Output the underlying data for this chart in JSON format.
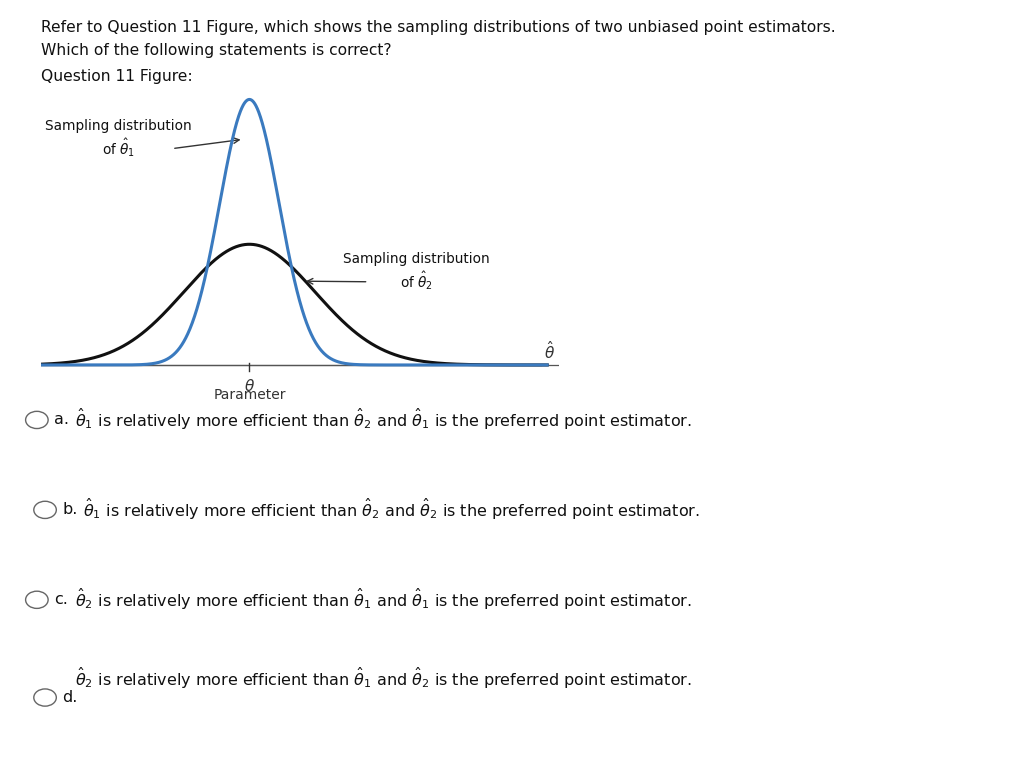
{
  "title_line1": "Refer to Question 11 Figure, which shows the sampling distributions of two unbiased point estimators.",
  "title_line2": "Which of the following statements is correct?",
  "subtitle_text": "Question 11 Figure:",
  "fig_bg_color": "#ffffff",
  "plot_bg_color": "#f0ebcc",
  "plot_border_color": "#c8c090",
  "curve1_color": "#3a7abf",
  "curve2_color": "#111111",
  "curve1_sigma": 0.5,
  "curve2_sigma": 1.1,
  "mean": 0.0,
  "label1_text": "Sampling distribution\nof $\\hat{\\theta}_1$",
  "label2_text": "Sampling distribution\nof $\\hat{\\theta}_2$",
  "options": [
    {
      "letter": "a.",
      "text": "$\\hat{\\theta}_1$ is relatively more efficient than $\\hat{\\theta}_2$ and $\\hat{\\theta}_1$ is the preferred point estimator."
    },
    {
      "letter": "b.",
      "text": "$\\hat{\\theta}_1$ is relatively more efficient than $\\hat{\\theta}_2$ and $\\hat{\\theta}_2$ is the preferred point estimator."
    },
    {
      "letter": "c.",
      "text": "$\\hat{\\theta}_2$ is relatively more efficient than $\\hat{\\theta}_1$ and $\\hat{\\theta}_1$ is the preferred point estimator."
    },
    {
      "letter": "d.",
      "text": "$\\hat{\\theta}_2$ is relatively more efficient than $\\hat{\\theta}_1$ and $\\hat{\\theta}_2$ is the preferred point estimator."
    }
  ]
}
